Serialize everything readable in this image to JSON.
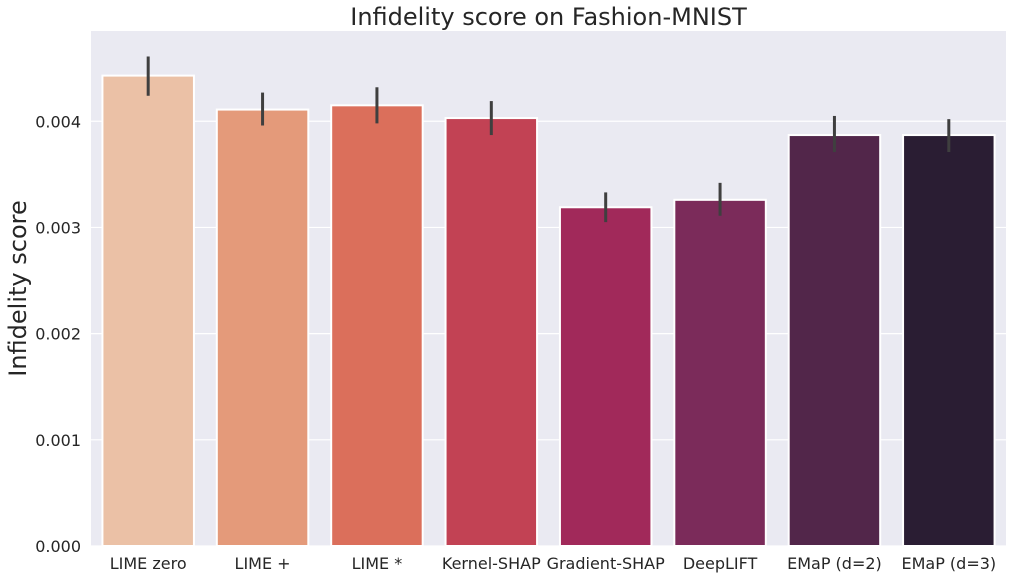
{
  "chart_data": {
    "type": "bar",
    "title": "Infidelity score on Fashion-MNIST",
    "xlabel": "",
    "ylabel": "Infidelity score",
    "ylim": [
      0,
      0.00485
    ],
    "yticks": [
      "0.000",
      "0.001",
      "0.002",
      "0.003",
      "0.004"
    ],
    "categories": [
      "LIME zero",
      "LIME +",
      "LIME *",
      "Kernel-SHAP",
      "Gradient-SHAP",
      "DeepLIFT",
      "EMaP (d=2)",
      "EMaP (d=3)"
    ],
    "values": [
      0.00443,
      0.00411,
      0.00415,
      0.00403,
      0.00319,
      0.00326,
      0.00387,
      0.00387
    ],
    "error_low": [
      0.00424,
      0.00396,
      0.00398,
      0.00387,
      0.00305,
      0.00311,
      0.00371,
      0.00371
    ],
    "error_high": [
      0.00461,
      0.00427,
      0.00432,
      0.00419,
      0.00333,
      0.00342,
      0.00405,
      0.00402
    ],
    "colors": [
      "#ebc1a6",
      "#e49a7a",
      "#db6f5b",
      "#c24254",
      "#a1295a",
      "#7b2b5a",
      "#52264a",
      "#2a1d33"
    ],
    "grid": true,
    "background": "#eaeaf2",
    "error_color": "#3f3f3f"
  }
}
